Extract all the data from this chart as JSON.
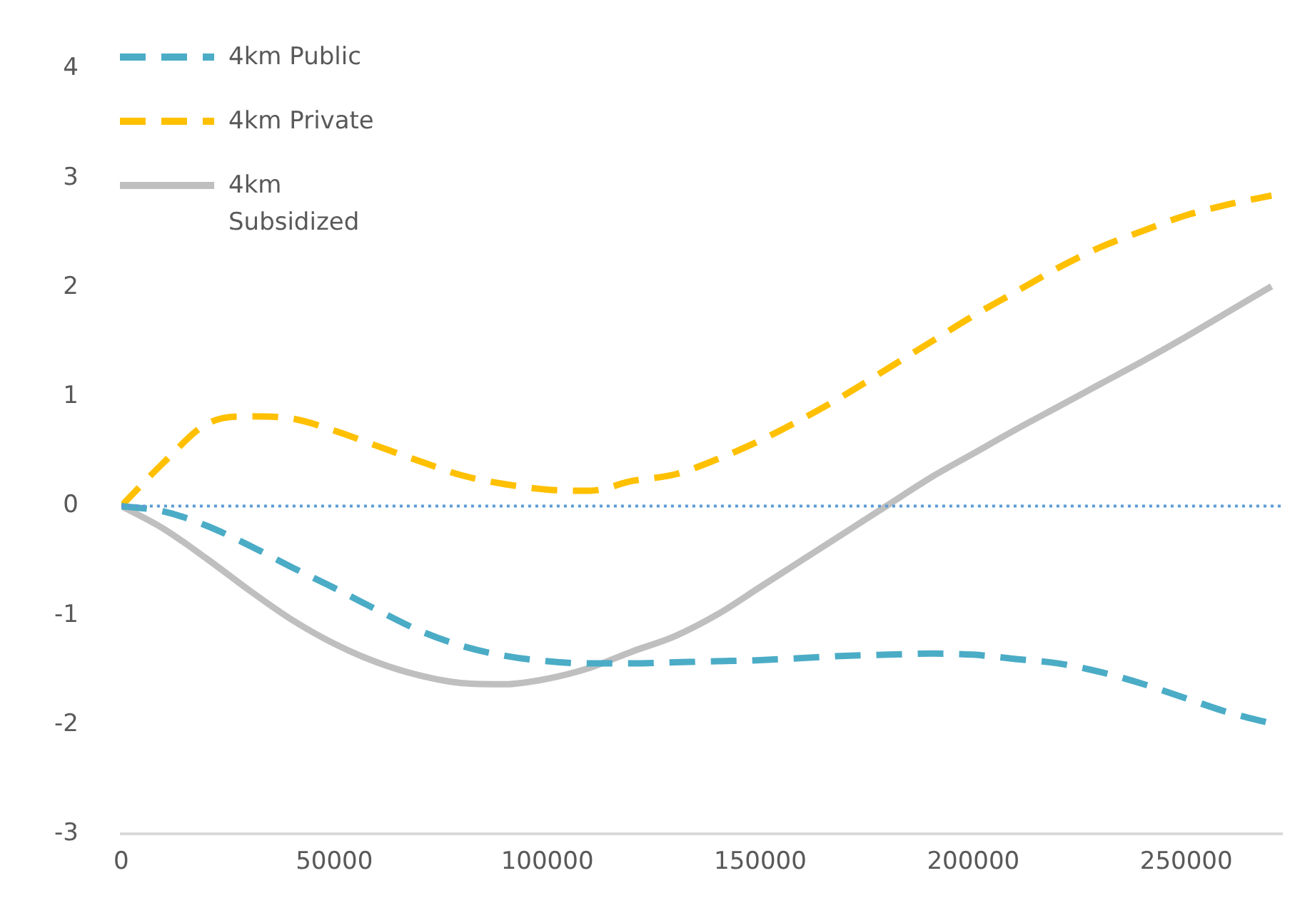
{
  "chart_data": {
    "type": "line",
    "x": [
      0,
      10000,
      20000,
      30000,
      40000,
      50000,
      60000,
      70000,
      80000,
      90000,
      100000,
      110000,
      120000,
      130000,
      140000,
      150000,
      160000,
      170000,
      180000,
      190000,
      200000,
      210000,
      220000,
      230000,
      240000,
      250000,
      260000,
      270000
    ],
    "series": [
      {
        "name": "4km Public",
        "color": "#4bacc6",
        "line_style": "dashed",
        "values": [
          0,
          -0.05,
          -0.18,
          -0.36,
          -0.56,
          -0.75,
          -0.95,
          -1.14,
          -1.28,
          -1.37,
          -1.42,
          -1.44,
          -1.44,
          -1.43,
          -1.42,
          -1.41,
          -1.39,
          -1.37,
          -1.36,
          -1.35,
          -1.36,
          -1.4,
          -1.44,
          -1.52,
          -1.63,
          -1.76,
          -1.89,
          -1.99
        ]
      },
      {
        "name": "4km Private",
        "color": "#ffc000",
        "line_style": "dashed",
        "values": [
          0,
          0.4,
          0.75,
          0.82,
          0.8,
          0.69,
          0.55,
          0.41,
          0.28,
          0.2,
          0.15,
          0.14,
          0.23,
          0.29,
          0.43,
          0.6,
          0.8,
          1.02,
          1.26,
          1.5,
          1.74,
          1.96,
          2.18,
          2.37,
          2.52,
          2.66,
          2.76,
          2.84
        ]
      },
      {
        "name": "4km Subsidized",
        "color": "#bfbfbf",
        "line_style": "solid",
        "values": [
          0,
          -0.21,
          -0.48,
          -0.77,
          -1.04,
          -1.26,
          -1.43,
          -1.55,
          -1.62,
          -1.63,
          -1.58,
          -1.48,
          -1.33,
          -1.19,
          -0.99,
          -0.74,
          -0.49,
          -0.24,
          0.01,
          0.26,
          0.48,
          0.7,
          0.91,
          1.12,
          1.33,
          1.55,
          1.78,
          2.01
        ]
      }
    ],
    "xlim": [
      0,
      272500
    ],
    "xticks": [
      0,
      50000,
      100000,
      150000,
      200000,
      250000
    ],
    "ylim": [
      -3,
      4
    ],
    "yticks": [
      -3,
      -2,
      -1,
      0,
      1,
      2,
      3,
      4
    ],
    "grid": false,
    "legend": "top left",
    "marker": "none",
    "ref_lines": [
      {
        "axis": "y",
        "value": 0,
        "color": "#5b9bd5",
        "line_style": "dotted"
      }
    ]
  }
}
